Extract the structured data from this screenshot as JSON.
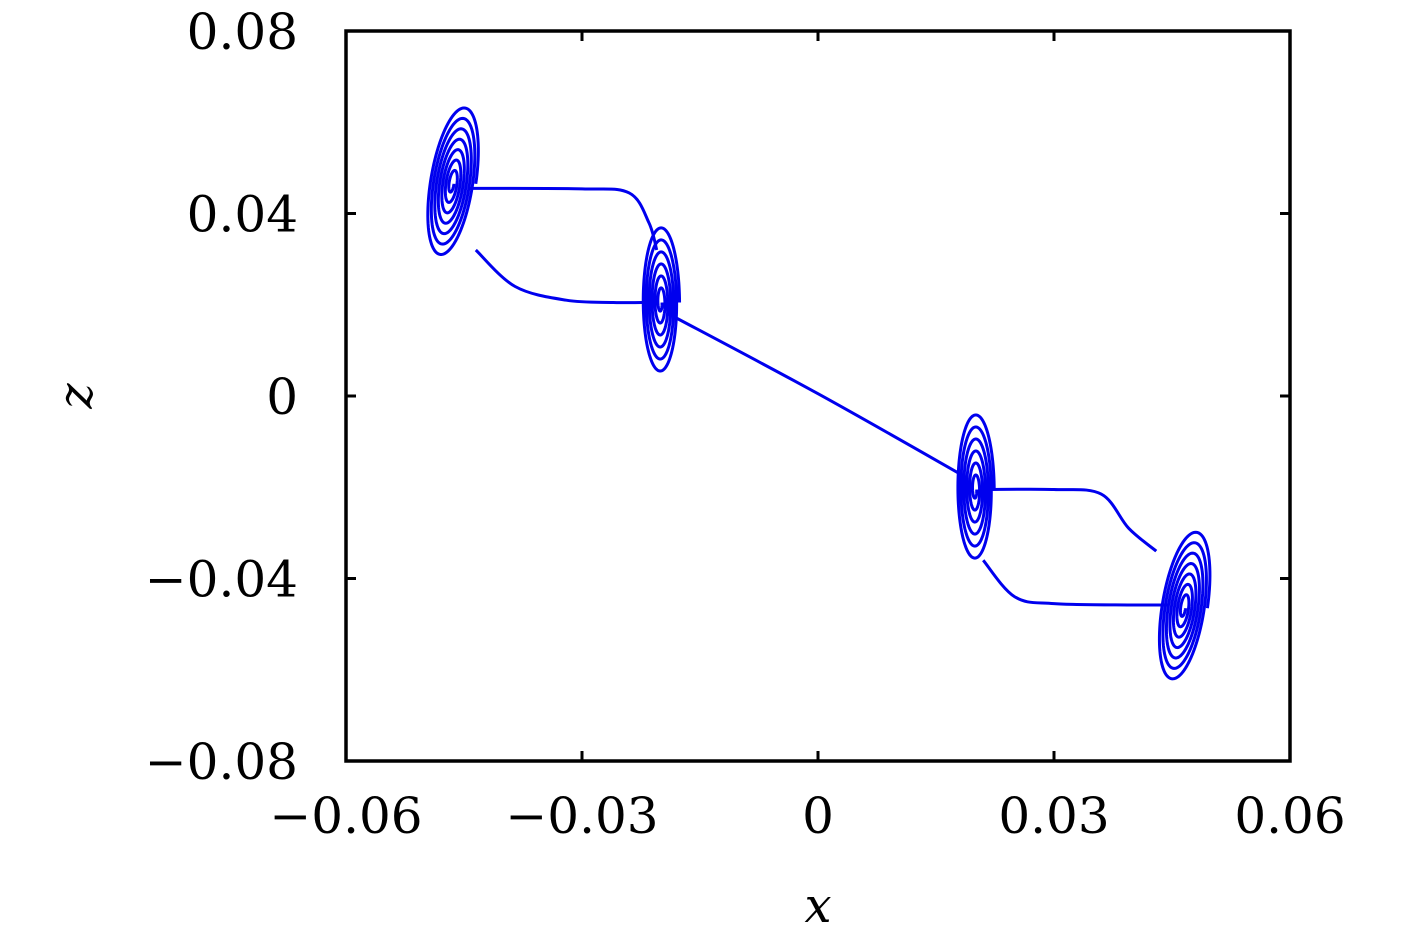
{
  "chart_data": {
    "type": "line",
    "title": "",
    "xlabel": "x",
    "ylabel": "z",
    "xlim": [
      -0.06,
      0.06
    ],
    "ylim": [
      -0.08,
      0.08
    ],
    "xticks": [
      -0.06,
      -0.03,
      0,
      0.03,
      0.06
    ],
    "yticks": [
      -0.08,
      -0.04,
      0,
      0.04,
      0.08
    ],
    "xtick_labels": [
      "−0.06",
      "−0.03",
      "0",
      "0.03",
      "0.06"
    ],
    "ytick_labels": [
      "−0.08",
      "−0.04",
      "0",
      "0.04",
      "0.08"
    ],
    "grid": false,
    "legend": "none",
    "series_color": "#0000ee",
    "spirals": [
      {
        "cx": -0.0465,
        "cz": 0.0465,
        "rx": 0.003,
        "rz": 0.0172,
        "loops": 7,
        "tilt": 0.00025
      },
      {
        "cx": -0.02,
        "cz": 0.0205,
        "rx": 0.0024,
        "rz": 0.017,
        "loops": 6,
        "tilt": 0.0
      },
      {
        "cx": 0.02,
        "cz": -0.0205,
        "rx": 0.0024,
        "rz": 0.017,
        "loops": 6,
        "tilt": 0.0
      },
      {
        "cx": 0.0465,
        "cz": -0.0465,
        "rx": 0.003,
        "rz": 0.0172,
        "loops": 7,
        "tilt": 0.00025
      }
    ],
    "connections": [
      {
        "points": [
          [
            -0.0445,
            0.0455
          ],
          [
            -0.03,
            0.0454
          ],
          [
            -0.024,
            0.0445
          ],
          [
            -0.0215,
            0.038
          ],
          [
            -0.0205,
            0.032
          ]
        ]
      },
      {
        "points": [
          [
            -0.0435,
            0.032
          ],
          [
            -0.0385,
            0.024
          ],
          [
            -0.032,
            0.021
          ],
          [
            -0.026,
            0.0205
          ],
          [
            -0.0215,
            0.0205
          ]
        ]
      },
      {
        "points": [
          [
            -0.019,
            0.018
          ],
          [
            0.0,
            0.0005
          ],
          [
            0.019,
            -0.018
          ]
        ]
      },
      {
        "points": [
          [
            0.0215,
            -0.0205
          ],
          [
            0.03,
            -0.0205
          ],
          [
            0.036,
            -0.0215
          ],
          [
            0.0395,
            -0.029
          ],
          [
            0.043,
            -0.034
          ]
        ]
      },
      {
        "points": [
          [
            0.021,
            -0.036
          ],
          [
            0.025,
            -0.044
          ],
          [
            0.03,
            -0.0455
          ],
          [
            0.04,
            -0.0458
          ],
          [
            0.0445,
            -0.0458
          ]
        ]
      }
    ]
  }
}
